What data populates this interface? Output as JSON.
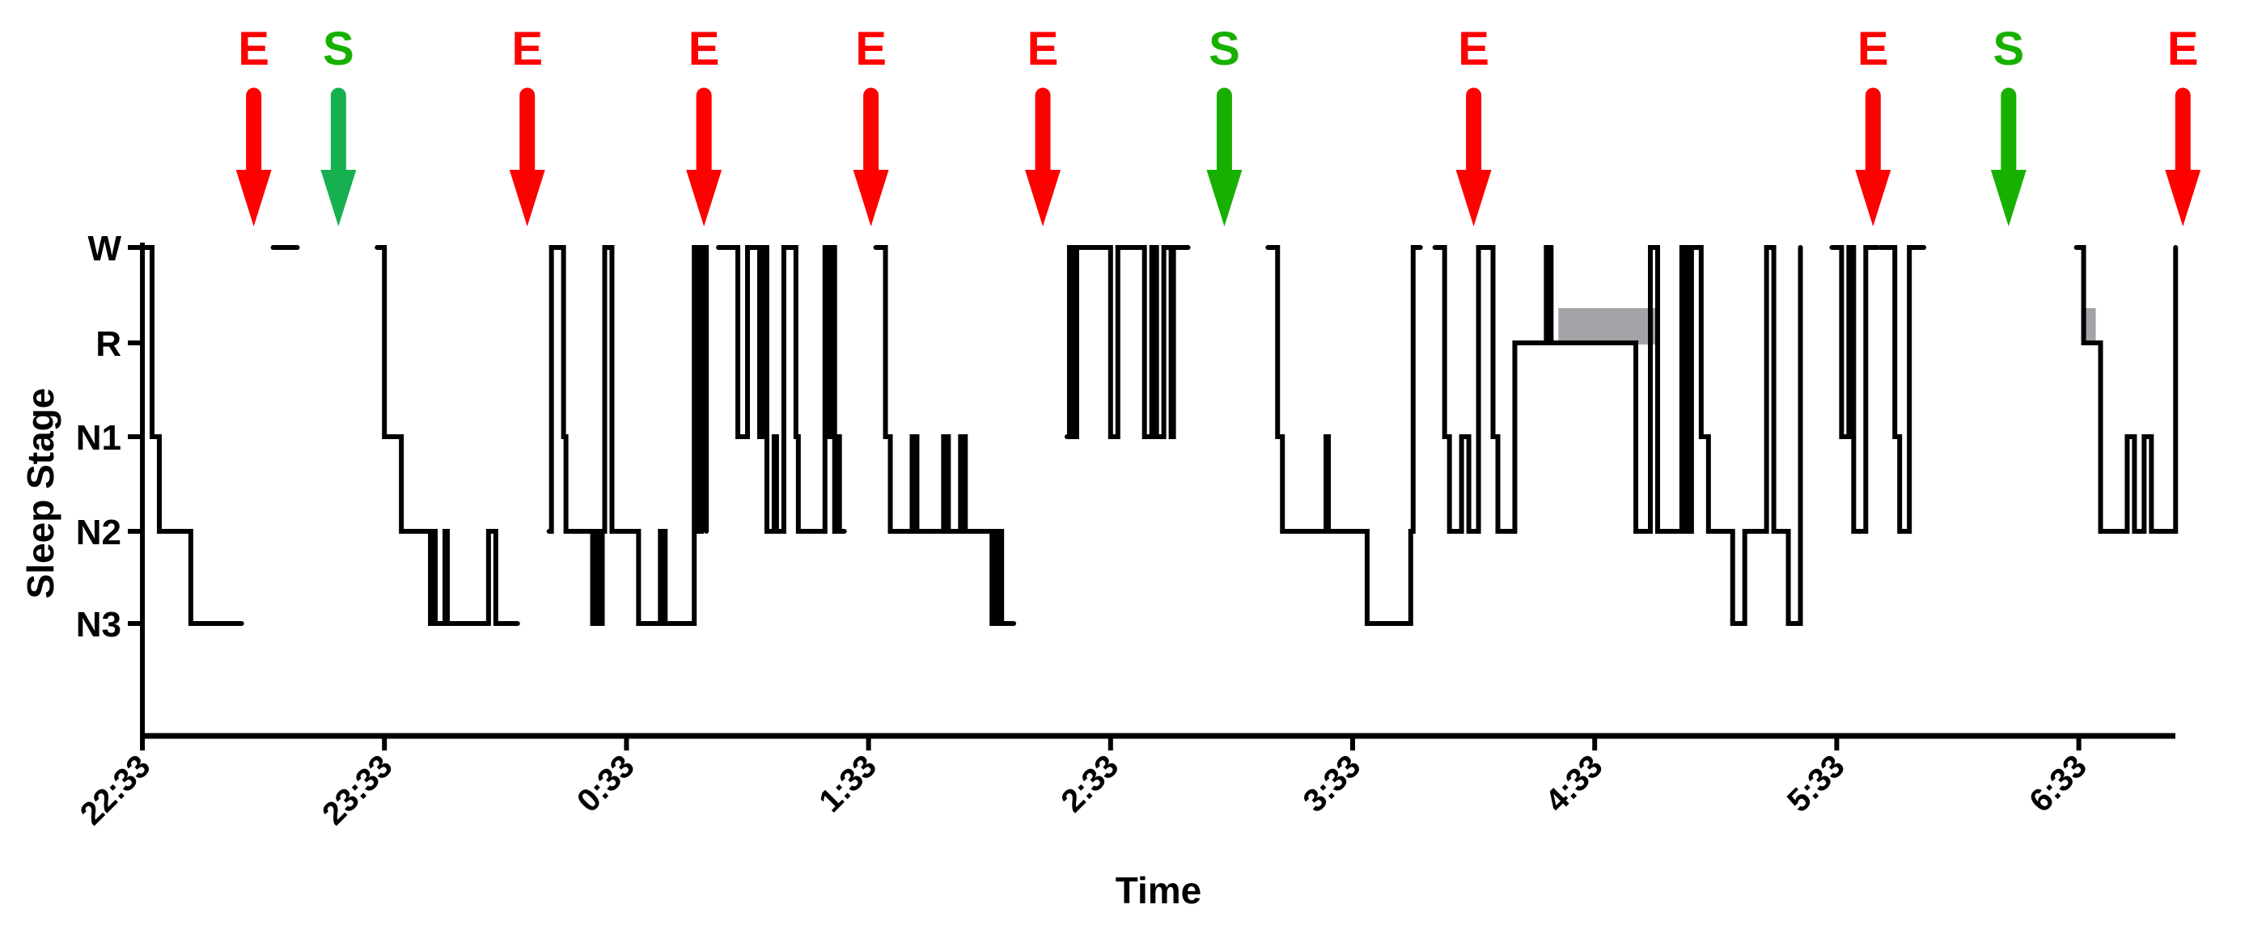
{
  "chart_data": {
    "type": "line",
    "subtype": "step-hypnogram",
    "xlabel": "Time",
    "ylabel": "Sleep Stage",
    "x_start_clock": "22:33",
    "x_unit": "hours since 22:33",
    "xlim": [
      0,
      8.4
    ],
    "x_ticks": [
      {
        "value": 0,
        "label": "22:33"
      },
      {
        "value": 1,
        "label": "23:33"
      },
      {
        "value": 2,
        "label": "0:33"
      },
      {
        "value": 3,
        "label": "1:33"
      },
      {
        "value": 4,
        "label": "2:33"
      },
      {
        "value": 5,
        "label": "3:33"
      },
      {
        "value": 6,
        "label": "4:33"
      },
      {
        "value": 7,
        "label": "5:33"
      },
      {
        "value": 8,
        "label": "6:33"
      }
    ],
    "y_categories": [
      "W",
      "R",
      "N1",
      "N2",
      "N3"
    ],
    "ylim_levels": 6,
    "grid": false,
    "legend": "none",
    "series": [
      {
        "name": "hypnogram",
        "color": "#000000",
        "segments": [
          [
            [
              0.0,
              "W"
            ],
            [
              0.04,
              "N1"
            ],
            [
              0.07,
              "N2"
            ],
            [
              0.2,
              "N3"
            ],
            [
              0.41,
              "N3"
            ]
          ],
          [
            [
              0.54,
              "W"
            ],
            [
              0.64,
              "W"
            ]
          ],
          [
            [
              0.97,
              "W"
            ],
            [
              1.0,
              "N1"
            ],
            [
              1.03,
              "N1"
            ],
            [
              1.03,
              "N1"
            ],
            [
              1.07,
              "N2"
            ],
            [
              1.19,
              "N3"
            ],
            [
              1.2,
              "N2"
            ],
            [
              1.21,
              "N3"
            ],
            [
              1.25,
              "N2"
            ],
            [
              1.26,
              "N3"
            ],
            [
              1.43,
              "N2"
            ],
            [
              1.46,
              "N3"
            ],
            [
              1.55,
              "N3"
            ]
          ],
          [
            [
              1.68,
              "N2"
            ],
            [
              1.69,
              "W"
            ],
            [
              1.74,
              "N1"
            ],
            [
              1.75,
              "N2"
            ],
            [
              1.86,
              "N3"
            ],
            [
              1.87,
              "N2"
            ],
            [
              1.89,
              "N3"
            ],
            [
              1.9,
              "N2"
            ],
            [
              1.91,
              "W"
            ],
            [
              1.94,
              "N2"
            ],
            [
              2.05,
              "N3"
            ],
            [
              2.14,
              "N2"
            ],
            [
              2.16,
              "N3"
            ],
            [
              2.28,
              "W"
            ],
            [
              2.3,
              "N2"
            ],
            [
              2.31,
              "W"
            ],
            [
              2.33,
              "N2"
            ]
          ],
          [
            [
              2.38,
              "W"
            ],
            [
              2.46,
              "N1"
            ],
            [
              2.5,
              "W"
            ],
            [
              2.55,
              "N1"
            ],
            [
              2.57,
              "W"
            ],
            [
              2.58,
              "N2"
            ],
            [
              2.61,
              "N1"
            ],
            [
              2.62,
              "N2"
            ],
            [
              2.65,
              "W"
            ],
            [
              2.7,
              "N1"
            ],
            [
              2.71,
              "N2"
            ],
            [
              2.82,
              "W"
            ],
            [
              2.84,
              "N1"
            ],
            [
              2.85,
              "W"
            ],
            [
              2.86,
              "N2"
            ],
            [
              2.87,
              "N1"
            ],
            [
              2.88,
              "N2"
            ],
            [
              2.9,
              "N2"
            ]
          ],
          [
            [
              3.03,
              "W"
            ],
            [
              3.07,
              "N1"
            ],
            [
              3.09,
              "N2"
            ],
            [
              3.18,
              "N1"
            ],
            [
              3.2,
              "N2"
            ],
            [
              3.31,
              "N1"
            ],
            [
              3.33,
              "N2"
            ],
            [
              3.38,
              "N1"
            ],
            [
              3.4,
              "N2"
            ],
            [
              3.51,
              "N3"
            ],
            [
              3.53,
              "N2"
            ],
            [
              3.55,
              "N3"
            ],
            [
              3.6,
              "N3"
            ]
          ],
          [
            [
              3.82,
              "N1"
            ],
            [
              3.83,
              "W"
            ],
            [
              3.85,
              "N1"
            ],
            [
              3.86,
              "W"
            ],
            [
              4.0,
              "N1"
            ],
            [
              4.03,
              "W"
            ],
            [
              4.14,
              "N1"
            ],
            [
              4.17,
              "W"
            ],
            [
              4.19,
              "N1"
            ],
            [
              4.22,
              "W"
            ],
            [
              4.25,
              "N1"
            ],
            [
              4.26,
              "W"
            ],
            [
              4.32,
              "W"
            ]
          ],
          [
            [
              4.65,
              "W"
            ],
            [
              4.69,
              "N1"
            ],
            [
              4.71,
              "N2"
            ],
            [
              4.89,
              "N1"
            ],
            [
              4.9,
              "N2"
            ],
            [
              5.06,
              "N3"
            ],
            [
              5.24,
              "N2"
            ],
            [
              5.25,
              "W"
            ],
            [
              5.28,
              "W"
            ]
          ],
          [
            [
              5.34,
              "W"
            ],
            [
              5.38,
              "N1"
            ],
            [
              5.4,
              "N2"
            ],
            [
              5.45,
              "N1"
            ],
            [
              5.48,
              "N2"
            ],
            [
              5.52,
              "W"
            ],
            [
              5.58,
              "N1"
            ],
            [
              5.6,
              "N2"
            ],
            [
              5.67,
              "R"
            ],
            [
              5.8,
              "W"
            ],
            [
              5.82,
              "R"
            ],
            [
              6.17,
              "N2"
            ],
            [
              6.23,
              "W"
            ],
            [
              6.26,
              "N2"
            ],
            [
              6.36,
              "W"
            ],
            [
              6.38,
              "N2"
            ],
            [
              6.4,
              "W"
            ],
            [
              6.44,
              "N1"
            ],
            [
              6.47,
              "N2"
            ],
            [
              6.57,
              "N3"
            ],
            [
              6.62,
              "N2"
            ],
            [
              6.71,
              "W"
            ],
            [
              6.74,
              "N2"
            ],
            [
              6.8,
              "N3"
            ],
            [
              6.85,
              "W"
            ]
          ],
          [
            [
              6.98,
              "W"
            ],
            [
              7.02,
              "N1"
            ],
            [
              7.05,
              "W"
            ],
            [
              7.07,
              "N2"
            ],
            [
              7.12,
              "W"
            ],
            [
              7.17,
              "W"
            ]
          ],
          [
            [
              7.18,
              "W"
            ],
            [
              7.24,
              "N1"
            ],
            [
              7.26,
              "N2"
            ],
            [
              7.3,
              "W"
            ],
            [
              7.36,
              "W"
            ]
          ],
          [
            [
              7.99,
              "W"
            ],
            [
              8.02,
              "R"
            ],
            [
              8.09,
              "N2"
            ],
            [
              8.2,
              "N1"
            ],
            [
              8.23,
              "N2"
            ],
            [
              8.27,
              "N1"
            ],
            [
              8.3,
              "N2"
            ],
            [
              8.4,
              "W"
            ]
          ]
        ]
      }
    ],
    "shaded_regions": [
      {
        "label": "REM highlight",
        "color": "#a3a2a7",
        "x": [
          5.85,
          6.25
        ],
        "level": "R"
      },
      {
        "label": "REM highlight",
        "color": "#a3a2a7",
        "x": [
          8.01,
          8.07
        ],
        "level": "R"
      }
    ],
    "annotations": [
      {
        "label": "E",
        "type": "arrow-down",
        "x": 0.46,
        "color": "#ff0000"
      },
      {
        "label": "S",
        "type": "arrow-down",
        "x": 0.81,
        "color": "#18b000",
        "arrow_color": "#17b050"
      },
      {
        "label": "E",
        "type": "arrow-down",
        "x": 1.59,
        "color": "#ff0000"
      },
      {
        "label": "E",
        "type": "arrow-down",
        "x": 2.32,
        "color": "#ff0000"
      },
      {
        "label": "E",
        "type": "arrow-down",
        "x": 3.01,
        "color": "#ff0000"
      },
      {
        "label": "E",
        "type": "arrow-down",
        "x": 3.72,
        "color": "#ff0000"
      },
      {
        "label": "S",
        "type": "arrow-down",
        "x": 4.47,
        "color": "#18b000"
      },
      {
        "label": "E",
        "type": "arrow-down",
        "x": 5.5,
        "color": "#ff0000"
      },
      {
        "label": "E",
        "type": "arrow-down",
        "x": 7.15,
        "color": "#ff0000"
      },
      {
        "label": "S",
        "type": "arrow-down",
        "x": 7.71,
        "color": "#18b000"
      },
      {
        "label": "E",
        "type": "arrow-down",
        "x": 8.43,
        "color": "#ff0000"
      }
    ]
  }
}
